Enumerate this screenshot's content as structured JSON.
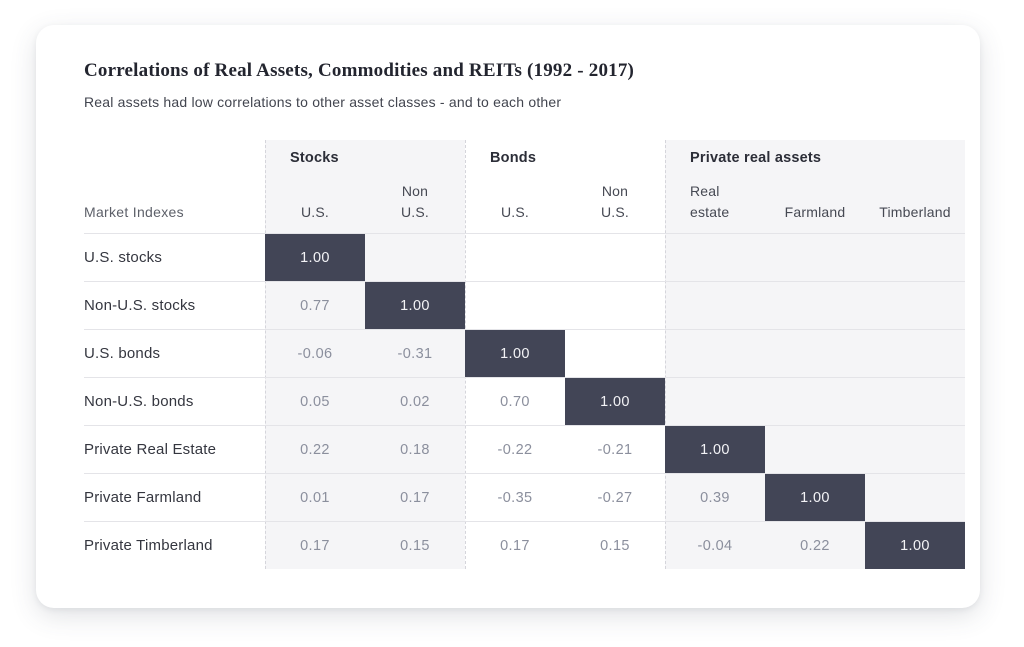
{
  "page": {
    "title": "Correlations of Real Assets, Commodities and REITs (1992 - 2017)",
    "subtitle": "Real assets had low correlations to other asset classes - and to each other"
  },
  "table": {
    "corner_label": "Market Indexes",
    "groups": [
      {
        "label": "Stocks"
      },
      {
        "label": "Bonds"
      },
      {
        "label": "Private real assets"
      }
    ],
    "subcolumns": [
      "U.S.",
      "Non U.S.",
      "U.S.",
      "Non U.S.",
      "Real estate",
      "Farmland",
      "Timberland"
    ],
    "rows": [
      {
        "label": "U.S. stocks",
        "cells": [
          "1.00",
          "",
          "",
          "",
          "",
          "",
          ""
        ]
      },
      {
        "label": "Non-U.S. stocks",
        "cells": [
          "0.77",
          "1.00",
          "",
          "",
          "",
          "",
          ""
        ]
      },
      {
        "label": "U.S. bonds",
        "cells": [
          "-0.06",
          "-0.31",
          "1.00",
          "",
          "",
          "",
          ""
        ]
      },
      {
        "label": "Non-U.S. bonds",
        "cells": [
          "0.05",
          "0.02",
          "0.70",
          "1.00",
          "",
          "",
          ""
        ]
      },
      {
        "label": "Private Real Estate",
        "cells": [
          "0.22",
          "0.18",
          "-0.22",
          "-0.21",
          "1.00",
          "",
          ""
        ]
      },
      {
        "label": "Private Farmland",
        "cells": [
          "0.01",
          "0.17",
          "-0.35",
          "-0.27",
          "0.39",
          "1.00",
          ""
        ]
      },
      {
        "label": "Private Timberland",
        "cells": [
          "0.17",
          "0.15",
          "0.17",
          "0.15",
          "-0.04",
          "0.22",
          "1.00"
        ]
      }
    ]
  },
  "colors": {
    "diagonal_cell": "#424556",
    "diagonal_text": "#f3f3f6",
    "group_stripe": "#f5f5f7",
    "value_text": "#8b8f9d",
    "header_text": "#2c2e38"
  },
  "chart_data": {
    "type": "table",
    "title": "Correlations of Real Assets, Commodities and REITs (1992 - 2017)",
    "subtitle": "Real assets had low correlations to other asset classes - and to each other",
    "column_groups": [
      "Stocks",
      "Bonds",
      "Private real assets"
    ],
    "columns": [
      "Stocks U.S.",
      "Stocks Non U.S.",
      "Bonds U.S.",
      "Bonds Non U.S.",
      "Real estate",
      "Farmland",
      "Timberland"
    ],
    "row_labels": [
      "U.S. stocks",
      "Non-U.S. stocks",
      "U.S. bonds",
      "Non-U.S. bonds",
      "Private Real Estate",
      "Private Farmland",
      "Private Timberland"
    ],
    "matrix": [
      [
        1.0,
        null,
        null,
        null,
        null,
        null,
        null
      ],
      [
        0.77,
        1.0,
        null,
        null,
        null,
        null,
        null
      ],
      [
        -0.06,
        -0.31,
        1.0,
        null,
        null,
        null,
        null
      ],
      [
        0.05,
        0.02,
        0.7,
        1.0,
        null,
        null,
        null
      ],
      [
        0.22,
        0.18,
        -0.22,
        -0.21,
        1.0,
        null,
        null
      ],
      [
        0.01,
        0.17,
        -0.35,
        -0.27,
        0.39,
        1.0,
        null
      ],
      [
        0.17,
        0.15,
        0.17,
        0.15,
        -0.04,
        0.22,
        1.0
      ]
    ],
    "layout": "lower-triangular correlation matrix; diagonal cells highlighted dark"
  }
}
